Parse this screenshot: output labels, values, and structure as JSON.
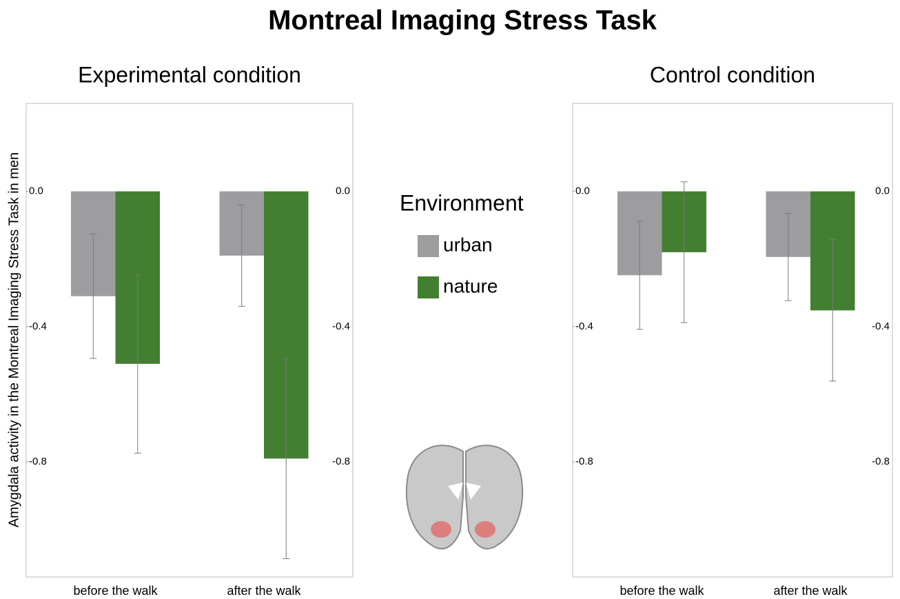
{
  "title": "Montreal Imaging Stress Task",
  "y_label": "Amygdala activity in the Montreal Imaging Stress Task in men",
  "legend_title": "Environment",
  "chart_data": [
    {
      "type": "bar",
      "title": "Experimental condition",
      "categories": [
        "before the walk",
        "after the walk"
      ],
      "series": [
        {
          "name": "urban",
          "color": "#9d9d9f",
          "values": [
            -0.31,
            -0.19
          ],
          "errors": [
            0.184,
            0.15
          ]
        },
        {
          "name": "nature",
          "color": "#437f31",
          "values": [
            -0.51,
            -0.79
          ],
          "errors": [
            0.264,
            0.296
          ]
        }
      ],
      "ylim": [
        -1.14,
        0.26
      ],
      "yticks": [
        {
          "value": 0,
          "label": "0.0"
        },
        {
          "value": -0.4,
          "label": "-0.4"
        },
        {
          "value": -0.8,
          "label": "-0.8"
        }
      ]
    },
    {
      "type": "bar",
      "title": "Control condition",
      "categories": [
        "before the walk",
        "after the walk"
      ],
      "series": [
        {
          "name": "urban",
          "color": "#9d9d9f",
          "values": [
            -0.248,
            -0.194
          ],
          "errors": [
            0.16,
            0.129
          ]
        },
        {
          "name": "nature",
          "color": "#437f31",
          "values": [
            -0.18,
            -0.352
          ],
          "errors": [
            0.208,
            0.209
          ]
        }
      ],
      "ylim": [
        -1.14,
        0.26
      ],
      "yticks": [
        {
          "value": 0,
          "label": "0.0"
        },
        {
          "value": -0.4,
          "label": "-0.4"
        },
        {
          "value": -0.8,
          "label": "-0.8"
        }
      ]
    }
  ]
}
